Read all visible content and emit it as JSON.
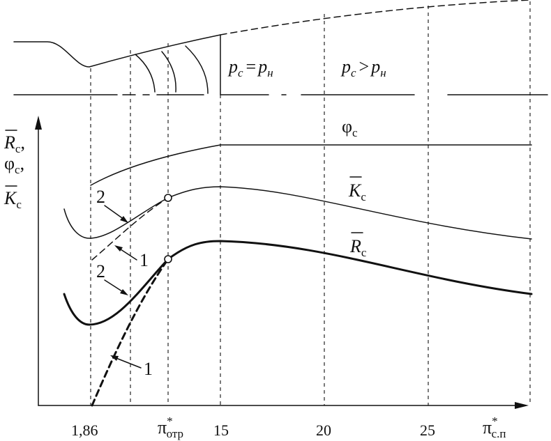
{
  "nozzle_labels": {
    "equal": {
      "p1": "p",
      "s1": "с",
      "eq": "=",
      "p2": "p",
      "s2": "н"
    },
    "greater": {
      "p1": "p",
      "s1": "с",
      "gt": ">",
      "p2": "p",
      "s2": "н"
    }
  },
  "y_axis_label": {
    "r": "R",
    "r_sub": "с",
    "r_sep": ",",
    "phi": "φ",
    "phi_sub": "с",
    "phi_sep": ",",
    "k": "K",
    "k_sub": "с"
  },
  "curve_labels": {
    "phi": {
      "main": "φ",
      "sub": "с"
    },
    "k": {
      "main": "K",
      "sub": "с"
    },
    "r": {
      "main": "R",
      "sub": "с"
    }
  },
  "branch_labels": {
    "k_two": "2",
    "k_one": "1",
    "r_two": "2",
    "r_one": "1"
  },
  "x_ticks": {
    "t186": "1,86",
    "pi_otr": {
      "main": "π",
      "star": "*",
      "sub": "отр"
    },
    "t15": "15",
    "t20": "20",
    "t25": "25",
    "axis": {
      "main": "π",
      "star": "*",
      "sub": "с.п"
    }
  }
}
